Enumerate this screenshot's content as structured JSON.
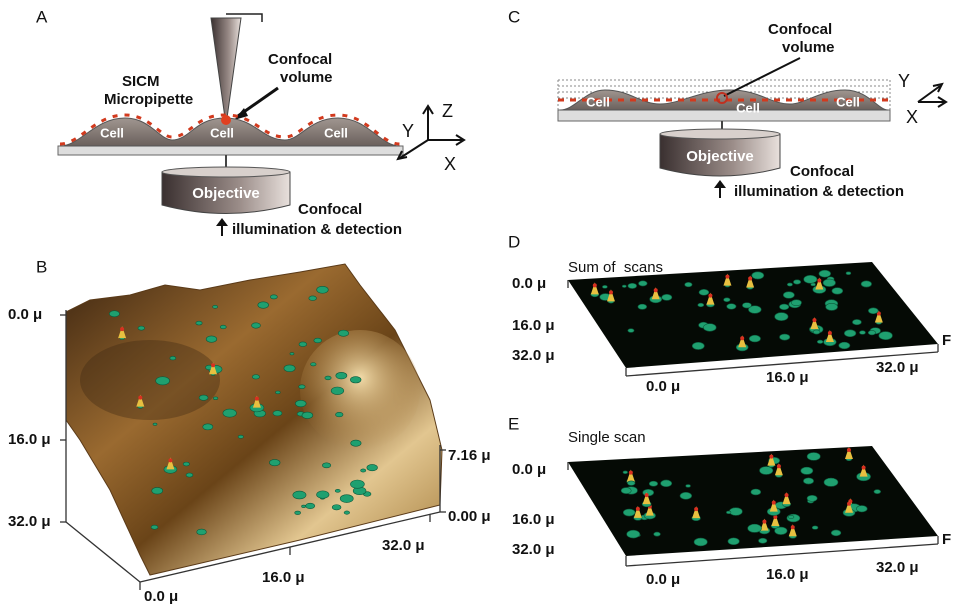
{
  "panels": {
    "a": {
      "label": "A",
      "pipette": [
        "SICM",
        "Micropipette"
      ],
      "confocal_volume": [
        "Confocal",
        "volume"
      ],
      "cells": [
        "Cell",
        "Cell",
        "Cell"
      ],
      "objective": "Objective",
      "illumination": [
        "Confocal",
        "illumination & detection"
      ],
      "axes": [
        "Z",
        "Y",
        "X"
      ]
    },
    "b": {
      "label": "B",
      "y_ticks": [
        "0.0 μ",
        "16.0 μ",
        "32.0 μ"
      ],
      "x_ticks": [
        "32.0 μ",
        "16.0 μ",
        "0.0 μ"
      ],
      "z_ticks": [
        "7.16 μ",
        "0.00 μ"
      ]
    },
    "c": {
      "label": "C",
      "confocal_volume": [
        "Confocal",
        "volume"
      ],
      "cells": [
        "Cell",
        "Cell",
        "Cell"
      ],
      "objective": "Objective",
      "illumination": [
        "Confocal",
        "illumination & detection"
      ],
      "axes": [
        "Y",
        "X"
      ]
    },
    "d": {
      "label": "D",
      "title": "Sum of  scans",
      "y_ticks": [
        "0.0 μ",
        "16.0 μ",
        "32.0 μ"
      ],
      "x_ticks": [
        "0.0 μ",
        "16.0 μ",
        "32.0 μ"
      ],
      "edge": "F"
    },
    "e": {
      "label": "E",
      "title": "Single scan",
      "y_ticks": [
        "0.0 μ",
        "16.0 μ",
        "32.0 μ"
      ],
      "x_ticks": [
        "0.0 μ",
        "16.0 μ",
        "32.0 μ"
      ],
      "edge": "F"
    }
  }
}
